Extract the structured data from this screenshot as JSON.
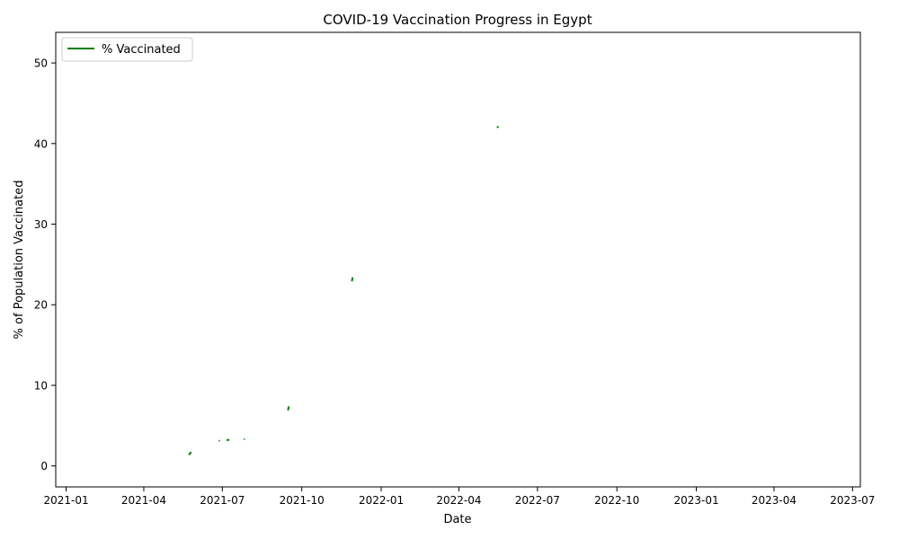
{
  "chart_data": {
    "type": "line",
    "title": "COVID-19 Vaccination Progress in Egypt",
    "xlabel": "Date",
    "ylabel": "% of Population Vaccinated",
    "x_type": "date",
    "xlim": [
      "2020-12-20",
      "2023-07-10"
    ],
    "ylim": [
      -2.6,
      53.8
    ],
    "x_ticks": [
      "2021-01-01",
      "2021-04-01",
      "2021-07-01",
      "2021-10-01",
      "2022-01-01",
      "2022-04-01",
      "2022-07-01",
      "2022-10-01",
      "2023-01-01",
      "2023-04-01",
      "2023-07-01"
    ],
    "x_tick_labels": [
      "2021-01",
      "2021-04",
      "2021-07",
      "2021-10",
      "2022-01",
      "2022-04",
      "2022-07",
      "2022-10",
      "2023-01",
      "2023-04",
      "2023-07"
    ],
    "y_ticks": [
      0,
      10,
      20,
      30,
      40,
      50
    ],
    "y_tick_labels": [
      "0",
      "10",
      "20",
      "30",
      "40",
      "50"
    ],
    "grid": false,
    "legend_position": "top-left",
    "series": [
      {
        "name": "% Vaccinated",
        "color": "#008000",
        "segments": [
          [
            {
              "x": "2021-05-23",
              "y": 1.4
            },
            {
              "x": "2021-05-26",
              "y": 1.7
            }
          ],
          [
            {
              "x": "2021-06-27",
              "y": 3.1
            },
            {
              "x": "2021-06-28",
              "y": 3.15
            }
          ],
          [
            {
              "x": "2021-07-06",
              "y": 3.2
            },
            {
              "x": "2021-07-09",
              "y": 3.25
            }
          ],
          [
            {
              "x": "2021-07-26",
              "y": 3.3
            },
            {
              "x": "2021-07-27",
              "y": 3.35
            }
          ],
          [
            {
              "x": "2021-09-15",
              "y": 6.9
            },
            {
              "x": "2021-09-16",
              "y": 7.4
            }
          ],
          [
            {
              "x": "2021-11-28",
              "y": 22.9
            },
            {
              "x": "2021-11-29",
              "y": 23.4
            }
          ],
          [
            {
              "x": "2022-05-15",
              "y": 42.0
            },
            {
              "x": "2022-05-17",
              "y": 42.1
            }
          ]
        ]
      }
    ]
  }
}
